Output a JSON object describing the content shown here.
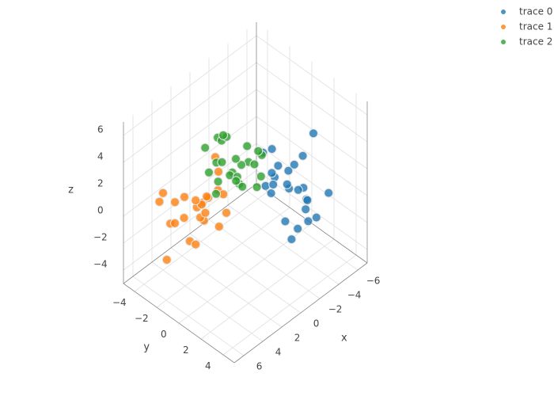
{
  "chart_data": {
    "type": "scatter3d",
    "xaxis_title": "x",
    "yaxis_title": "y",
    "zaxis_title": "z",
    "xlim": [
      -7,
      7
    ],
    "ylim": [
      -5,
      5
    ],
    "zlim": [
      -5,
      7
    ],
    "xticks": [
      {
        "value": -6,
        "label": "−6"
      },
      {
        "value": -4,
        "label": "−4"
      },
      {
        "value": -2,
        "label": "−2"
      },
      0,
      2,
      4,
      6
    ],
    "yticks": [
      {
        "value": -4,
        "label": "−4"
      },
      {
        "value": -2,
        "label": "−2"
      },
      0,
      2,
      4
    ],
    "zticks": [
      {
        "value": -4,
        "label": "−4"
      },
      {
        "value": -2,
        "label": "−2"
      },
      0,
      2,
      4,
      6
    ],
    "grid": true,
    "legend_position": "top-right",
    "series": [
      {
        "name": "trace 0",
        "color": "#1f77b4",
        "x": [
          -3.2,
          -2.5,
          -4.1,
          -3.8,
          -2.1,
          -5.0,
          -3.5,
          -2.8,
          -4.6,
          -1.9,
          -3.0,
          -6.0,
          -4.2,
          -2.3,
          -3.7,
          -5.5,
          -2.9,
          -3.3,
          -4.8,
          -1.5,
          -2.6,
          -3.9,
          -5.8,
          -2.0,
          -3.4
        ],
        "y": [
          1.2,
          0.5,
          2.0,
          -0.3,
          1.8,
          0.9,
          2.6,
          -0.8,
          1.5,
          0.2,
          3.1,
          1.0,
          -1.2,
          2.2,
          0.6,
          2.8,
          1.4,
          -0.5,
          0.3,
          1.1,
          2.5,
          1.9,
          -0.2,
          0.8,
          3.5
        ],
        "z": [
          0.3,
          1.1,
          -0.5,
          0.8,
          -1.2,
          1.6,
          0.1,
          2.0,
          -1.8,
          0.6,
          -0.9,
          2.8,
          1.3,
          -2.4,
          0.0,
          -0.3,
          1.9,
          -1.1,
          0.7,
          2.3,
          -1.6,
          0.4,
          -2.0,
          1.0,
          -0.6
        ]
      },
      {
        "name": "trace 1",
        "color": "#ff7f0e",
        "x": [
          1.0,
          2.3,
          0.4,
          1.8,
          -0.5,
          3.0,
          1.5,
          0.8,
          2.6,
          -0.2,
          1.2,
          3.8,
          0.1,
          2.0,
          1.6,
          4.5,
          0.6,
          2.9,
          -0.8,
          1.3,
          3.3,
          0.9,
          2.1,
          5.0,
          1.7
        ],
        "y": [
          -3.0,
          -2.4,
          -3.6,
          -1.8,
          -2.9,
          -4.2,
          -2.2,
          -3.8,
          -1.5,
          -2.6,
          -4.5,
          -3.1,
          -1.9,
          -3.3,
          -2.7,
          -3.9,
          -1.2,
          -2.0,
          -3.4,
          -2.5,
          -4.6,
          -1.6,
          -3.7,
          -2.8,
          -4.9
        ],
        "z": [
          -1.0,
          -0.3,
          -1.8,
          0.5,
          -0.8,
          -2.2,
          0.2,
          -1.4,
          -0.6,
          0.9,
          -2.9,
          -1.1,
          -0.2,
          -3.5,
          -1.6,
          0.4,
          -0.9,
          -2.5,
          1.2,
          -1.3,
          0.0,
          -2.0,
          -0.4,
          -3.0,
          -1.7
        ]
      },
      {
        "name": "trace 2",
        "color": "#2ca02c",
        "x": [
          0.2,
          -0.8,
          1.0,
          -1.5,
          0.6,
          -0.3,
          1.4,
          -1.1,
          0.0,
          0.9,
          -2.0,
          0.4,
          -0.6,
          1.8,
          -1.3,
          0.3,
          -0.9,
          1.1,
          -0.1,
          -1.7,
          0.7,
          -0.4,
          1.5,
          -1.0,
          0.5
        ],
        "y": [
          -1.0,
          -0.4,
          -1.6,
          0.2,
          -2.1,
          -0.8,
          -0.2,
          -1.3,
          -2.5,
          0.5,
          -0.9,
          -1.8,
          0.9,
          -1.1,
          -2.8,
          -0.6,
          -1.5,
          0.1,
          -2.2,
          -0.3,
          -1.4,
          0.7,
          -2.0,
          -0.7,
          -3.2
        ],
        "z": [
          2.0,
          2.6,
          1.4,
          3.1,
          2.3,
          1.0,
          2.9,
          1.7,
          3.6,
          2.2,
          1.5,
          4.0,
          2.4,
          1.2,
          2.8,
          3.3,
          0.8,
          2.5,
          1.9,
          3.0,
          4.8,
          1.6,
          2.1,
          3.5,
          2.7
        ]
      }
    ]
  }
}
